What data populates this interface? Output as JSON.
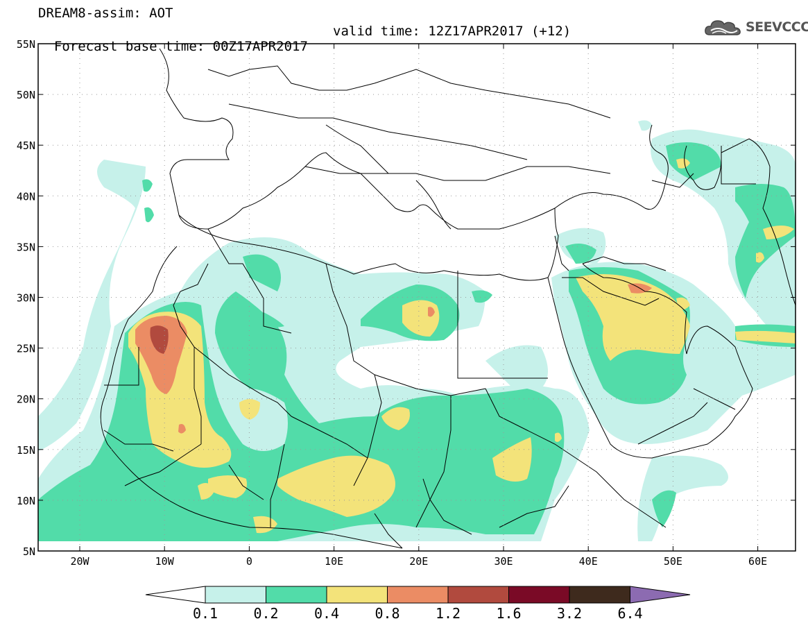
{
  "header": {
    "title": "DREAM8-assim: AOT",
    "base_time": "Forecast base time: 00Z17APR2017",
    "valid_time": "valid time: 12Z17APR2017 (+12)"
  },
  "logo": {
    "text": "SEEVCCC",
    "icon": "cloud-icon"
  },
  "map": {
    "lat_labels": [
      "55N",
      "50N",
      "45N",
      "40N",
      "35N",
      "30N",
      "25N",
      "20N",
      "15N",
      "10N",
      "5N"
    ],
    "lon_labels": [
      "20W",
      "10W",
      "0",
      "10E",
      "20E",
      "30E",
      "40E",
      "50E",
      "60E"
    ]
  },
  "colorbar": {
    "labels": [
      "0.1",
      "0.2",
      "0.4",
      "0.8",
      "1.2",
      "1.6",
      "3.2",
      "6.4"
    ],
    "colors": [
      "#ffffff",
      "#c6f1ea",
      "#52dca9",
      "#f3e37a",
      "#eb8c64",
      "#b14a3e",
      "#7a0a26",
      "#3e2a1d",
      "#8c6bb1"
    ]
  }
}
